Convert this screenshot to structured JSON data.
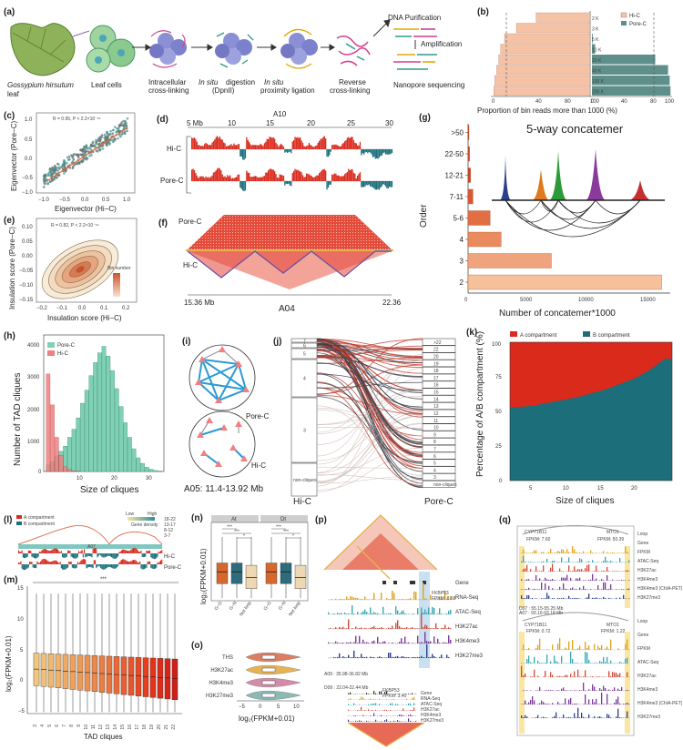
{
  "panels": {
    "a": {
      "label": "(a)",
      "species": "Gossypium hirsutum",
      "leaf": "leaf",
      "steps": [
        "Leaf cells",
        "Intracellular",
        "cross-linking",
        "In situ",
        "digestion",
        "(DpnII)",
        "In situ",
        "proximity ligation",
        "Reverse",
        "cross-linking"
      ],
      "dna_purification": "DNA Purification",
      "amplification": "Amplification",
      "nanopore": "Nanopore sequencing"
    },
    "b": {
      "label": "(b)",
      "legend": [
        "Hi-C",
        "Pore-C"
      ],
      "bins": [
        "2 K",
        "3 K",
        "5 K",
        "10 K",
        "20 K",
        "40 K",
        "100 K",
        "200 K"
      ],
      "axis_ticks_left": [
        "100",
        "80",
        "40",
        "0"
      ],
      "axis_ticks_right": [
        "0",
        "40",
        "80",
        "100"
      ],
      "xlabel": "Proportion of bin reads more than 1000 (%)"
    },
    "c": {
      "label": "(c)",
      "stat": "R = 0.95, P < 2.2×10⁻¹⁶",
      "xlabel": "Eigenvector (Hi−C)",
      "ylabel": "Eigenvector (Pore−C)",
      "xticks": [
        "−1.0",
        "−0.5",
        "0.0",
        "0.5",
        "1.0"
      ],
      "yticks": [
        "1.0",
        "0.5",
        "0.0",
        "−0.5",
        "−1.0"
      ]
    },
    "d": {
      "label": "(d)",
      "title": "A10",
      "ticks": [
        "5 Mb",
        "10",
        "15",
        "20",
        "25",
        "30"
      ],
      "tracks": [
        "Hi-C",
        "Pore-C"
      ]
    },
    "e": {
      "label": "(e)",
      "stat": "R = 0.82, P < 2.2×10⁻¹⁶",
      "xlabel": "Insulation score (Hi−C)",
      "ylabel": "Insulation score (Pore−C)",
      "xticks": [
        "−0.2",
        "−0.1",
        "0.0",
        "0.1",
        "0.2"
      ],
      "yticks": [
        "0.10",
        "0.05",
        "0.00",
        "−0.05",
        "−0.10",
        "−0.15"
      ],
      "legend": "Bin number"
    },
    "f": {
      "label": "(f)",
      "top": "Pore-C",
      "bottom": "Hi-C",
      "start": "15.36 Mb",
      "chr": "A04",
      "end": "22.36"
    },
    "g": {
      "label": "(g)",
      "title": "5-way concatemer",
      "ylabel": "Order",
      "xlabel": "Number of concatemer*1000",
      "xticks": [
        "0",
        "5000",
        "10000",
        "15000"
      ]
    },
    "h": {
      "label": "(h)",
      "legend": [
        "Pore-C",
        "Hi-C"
      ],
      "ylabel": "Number of TAD cliques",
      "xlabel": "Size of cliques",
      "yticks": [
        "0",
        "1000",
        "2000",
        "3000",
        "4000"
      ],
      "xticks": [
        "10",
        "20",
        "30"
      ]
    },
    "i": {
      "label": "(i)",
      "tags": [
        "Pore-C",
        "Hi-C"
      ],
      "caption": "A05: 11.4-13.92 Mb"
    },
    "j": {
      "label": "(j)",
      "left_labels": [
        "7",
        "6",
        "5",
        "4",
        "3",
        "non-cliques"
      ],
      "right_labels": [
        ">22",
        "22",
        "20",
        "19",
        "18",
        "17",
        "16",
        "15",
        "14",
        "13",
        "12",
        "11",
        "10",
        "9",
        "8",
        "7",
        "6",
        "5",
        "4",
        "3",
        "non-cliques"
      ],
      "left": "Hi-C",
      "right": "Pore-C"
    },
    "k": {
      "label": "(k)",
      "legend": [
        "A compartment",
        "B compartment"
      ],
      "ylabel": "Percentage of A/B compartment (%)",
      "xlabel": "Size of cliques",
      "yticks": [
        "0",
        "25",
        "50",
        "75",
        "100"
      ],
      "xticks": [
        "5",
        "10",
        "15",
        "20"
      ]
    },
    "l": {
      "label": "(l)",
      "legend": [
        "A compartment",
        "B compartment"
      ],
      "density": [
        "Low",
        "High",
        "Gene density"
      ],
      "density_ticks": [
        "18-22",
        "13-17",
        "8-12",
        "3-7"
      ],
      "chr": "A07",
      "tracks": [
        "Hi-C",
        "Pore-C"
      ]
    },
    "m": {
      "label": "(m)",
      "sig": "***",
      "ylabel": "log₂(FPKM+0.01)",
      "xlabel": "TAD cliques",
      "yticks": [
        "−5",
        "0",
        "5",
        "10",
        "15"
      ],
      "xticks": [
        "3",
        "4",
        "5",
        "6",
        "7",
        "8",
        "9",
        "10",
        "11",
        "12",
        "13",
        "14",
        "15",
        "16",
        "17",
        "18",
        "19",
        "20",
        "21",
        "22"
      ]
    },
    "n": {
      "label": "(n)",
      "groups": [
        "At",
        "Dt"
      ],
      "ylabel": "log₂(FPKM+0.01)",
      "xticks": [
        "G−G",
        "G−N",
        "Not loop",
        "G−G",
        "G−N",
        "Not loop"
      ],
      "sig": [
        "***",
        "***",
        "*",
        "***",
        "***",
        "*"
      ]
    },
    "o": {
      "label": "(o)",
      "rows": [
        "THS",
        "H3K27ac",
        "H3K4me3",
        "H3K27me3"
      ],
      "xlabel": "log₂(FPKM+0.01)",
      "xticks": [
        "−5",
        "0",
        "5",
        "10"
      ]
    },
    "p": {
      "label": "(p)",
      "tracks": [
        "Gene",
        "RNA-Seq",
        "ATAC-Seq",
        "H3K27ac",
        "H3K4me3",
        "H3K27me3"
      ],
      "gene": "FKBP53",
      "fpkm": "FPKM: 8.68",
      "region1": "A09 : 35.98-36.82 Mb",
      "region2": "D09 : 22.04-22.44 Mb",
      "gene2": "FKBP53",
      "fpkm2": "FPKM: 3.40"
    },
    "q": {
      "label": "(q)",
      "tracks": [
        "Loop",
        "Gene",
        "FPKM",
        "ATAC-Seq",
        "H3K27ac",
        "H3K4me3",
        "H3K4me3 (ChIA-PET)",
        "H3K27me3"
      ],
      "gene_l": "CYP71B11",
      "fpkm_l": "FPKM: 7.60",
      "gene_r": "MTO1",
      "fpkm_r": "FPKM: 50.39",
      "region": "A07 : 93.10-93.18 Mb",
      "region2": "D07 : 55.15-55.25 Mb",
      "gene_l2": "CYP71B11",
      "fpkm_l2": "FPKM: 0.72",
      "gene_r2": "MTO1",
      "fpkm_r2": "FPKM: 1.22"
    }
  },
  "colors": {
    "hic": "#f5c2a6",
    "porec": "#5f8f8a",
    "red": "#d92a1c",
    "teal": "#1b6e7a",
    "mint": "#7fd1b5",
    "pink": "#f07f80"
  },
  "chart_data": [
    {
      "type": "bar",
      "panel": "b",
      "categories": [
        "2 K",
        "3 K",
        "5 K",
        "10 K",
        "20 K",
        "40 K",
        "100 K",
        "200 K"
      ],
      "series": [
        {
          "name": "Hi-C",
          "values": [
            55,
            75,
            87,
            91,
            93,
            95,
            97,
            98
          ]
        },
        {
          "name": "Pore-C",
          "values": [
            0,
            0,
            1,
            4,
            79,
            95,
            97,
            98
          ]
        }
      ],
      "xlabel": "Proportion of bin reads more than 1000 (%)",
      "xlim": [
        0,
        100
      ]
    },
    {
      "type": "bar",
      "panel": "g",
      "categories": [
        "2",
        "3",
        "4",
        "5-6",
        "7-11",
        "12-21",
        "22-50",
        ">50"
      ],
      "values": [
        15800,
        6800,
        2700,
        1800,
        400,
        200,
        120,
        60
      ],
      "ylabel": "Order",
      "xlabel": "Number of concatemer*1000",
      "xlim": [
        0,
        16500
      ]
    },
    {
      "type": "bar",
      "panel": "h",
      "categories": [
        3,
        4,
        5,
        6,
        7,
        8,
        9,
        10,
        11,
        12,
        13,
        14,
        15,
        16,
        17,
        18,
        19,
        20,
        21,
        22,
        23,
        24,
        25,
        26,
        27,
        28,
        29
      ],
      "series": [
        {
          "name": "Pore-C",
          "values": [
            200,
            300,
            480,
            620,
            780,
            1050,
            1300,
            1650,
            2100,
            2500,
            2950,
            3350,
            3650,
            3850,
            3550,
            3100,
            2550,
            2000,
            1500,
            1050,
            700,
            420,
            250,
            130,
            70,
            30,
            15
          ]
        },
        {
          "name": "Hi-C",
          "values": [
            3000,
            2050,
            1050,
            500,
            150,
            60,
            20,
            5,
            0,
            0,
            0,
            0,
            0,
            0,
            0,
            0,
            0,
            0,
            0,
            0,
            0,
            0,
            0,
            0,
            0,
            0,
            0
          ]
        }
      ],
      "ylabel": "Number of TAD cliques",
      "xlabel": "Size of cliques",
      "ylim": [
        0,
        4200
      ]
    },
    {
      "type": "area",
      "panel": "k",
      "x": [
        3,
        5,
        7,
        9,
        11,
        13,
        15,
        17,
        19,
        21,
        23
      ],
      "series": [
        {
          "name": "A compartment",
          "values": [
            47,
            46,
            44,
            42,
            40,
            37,
            34,
            30,
            26,
            20,
            12
          ]
        },
        {
          "name": "B compartment",
          "values": [
            53,
            54,
            56,
            58,
            60,
            63,
            66,
            70,
            74,
            80,
            88
          ]
        }
      ],
      "ylabel": "Percentage of A/B compartment (%)",
      "xlabel": "Size of cliques",
      "ylim": [
        0,
        100
      ]
    }
  ]
}
